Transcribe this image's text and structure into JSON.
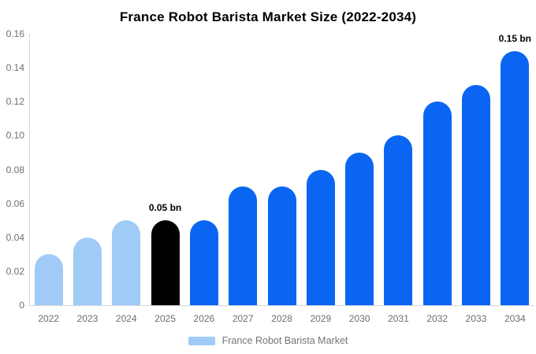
{
  "title": "France Robot Barista Market Size (2022-2034)",
  "legend": {
    "label": "France Robot Barista Market",
    "swatch_color": "#A1CBF7"
  },
  "colors": {
    "historical_bar": "#A1CBF7",
    "base_year_bar": "#000000",
    "forecast_bar": "#0A66F2",
    "axis_line": "#D8D8D8",
    "tick_label_text": "#6E6E6E",
    "legend_text": "#757575",
    "title_text": "#000000",
    "annotation_text": "#000000",
    "background": "#FFFFFF"
  },
  "chart_data": {
    "type": "bar",
    "title": "France Robot Barista Market Size (2022-2034)",
    "categories": [
      "2022",
      "2023",
      "2024",
      "2025",
      "2026",
      "2027",
      "2028",
      "2029",
      "2030",
      "2031",
      "2032",
      "2033",
      "2034"
    ],
    "values": [
      0.03,
      0.04,
      0.05,
      0.05,
      0.05,
      0.07,
      0.07,
      0.08,
      0.09,
      0.1,
      0.12,
      0.13,
      0.15
    ],
    "unit": "bn",
    "bar_colors": [
      "#A1CBF7",
      "#A1CBF7",
      "#A1CBF7",
      "#000000",
      "#0A66F2",
      "#0A66F2",
      "#0A66F2",
      "#0A66F2",
      "#0A66F2",
      "#0A66F2",
      "#0A66F2",
      "#0A66F2",
      "#0A66F2"
    ],
    "annotations": [
      {
        "category": "2025",
        "text": "0.05 bn"
      },
      {
        "category": "2034",
        "text": "0.15 bn"
      }
    ],
    "xlabel": "",
    "ylabel": "",
    "ylim": [
      0,
      0.16
    ],
    "ytick_labels": [
      "0.16",
      "0.14",
      "0.12",
      "0.10",
      "0.08",
      "0.06",
      "0.04",
      "0.02",
      "0"
    ],
    "grid": false,
    "legend_position": "bottom",
    "legend_entries": [
      "France Robot Barista Market"
    ]
  }
}
